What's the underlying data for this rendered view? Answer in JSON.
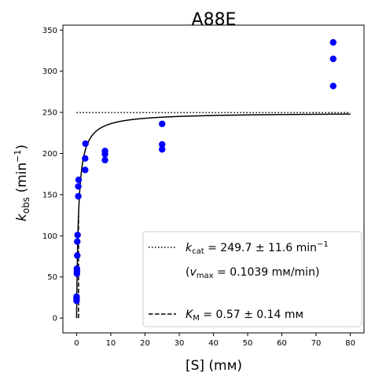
{
  "chart_data": {
    "type": "scatter",
    "title": "A88E",
    "xlabel": "[S] (mм)",
    "ylabel_main": "k",
    "ylabel_sub": "obs",
    "ylabel_unit_pre": " (min",
    "ylabel_unit_sup": "−1",
    "ylabel_unit_post": ")",
    "xlim": [
      -4,
      84
    ],
    "ylim": [
      -18,
      356
    ],
    "x_ticks": [
      0,
      10,
      20,
      30,
      40,
      50,
      60,
      70,
      80
    ],
    "y_ticks": [
      0,
      50,
      100,
      150,
      200,
      250,
      300,
      350
    ],
    "grid": false,
    "legend_position": "lower-right",
    "colors": {
      "points": "#0000ff",
      "fit": "#000000"
    },
    "series": [
      {
        "kind": "points",
        "x": [
          0,
          0,
          0,
          0.1,
          0.1,
          0.1,
          0.2,
          0.2,
          0.3,
          0.5,
          0.5,
          0.6,
          2.5,
          2.5,
          2.6,
          8.3,
          8.3,
          8.3,
          25,
          25,
          25,
          75,
          75,
          75
        ],
        "y": [
          21,
          24,
          26,
          54,
          57,
          60,
          76,
          93,
          101,
          148,
          160,
          168,
          180,
          194,
          212,
          192,
          199,
          203,
          205,
          211,
          236,
          282,
          315,
          335
        ]
      },
      {
        "kind": "fit",
        "model": "michaelis-menten",
        "kcat": 249.7,
        "KM": 0.57,
        "x_range": [
          0,
          80
        ]
      }
    ],
    "reference_lines": [
      {
        "kind": "kcat",
        "y": 249.7,
        "x_range": [
          0,
          80
        ],
        "style": "dotted"
      },
      {
        "kind": "KM",
        "x": 0.57,
        "y_range": [
          0,
          124.85
        ],
        "style": "dashed"
      }
    ],
    "legend": {
      "kcat": {
        "sym": "k",
        "sub": "cat",
        "text": " = 249.7 ± 11.6 min",
        "sup": "−1"
      },
      "vmax": {
        "open": "(",
        "sym": "v",
        "sub": "max",
        "text": " = 0.1039 mм/min)"
      },
      "km": {
        "sym": "K",
        "sub": "M",
        "text": " = 0.57 ± 0.14 mм"
      }
    }
  }
}
